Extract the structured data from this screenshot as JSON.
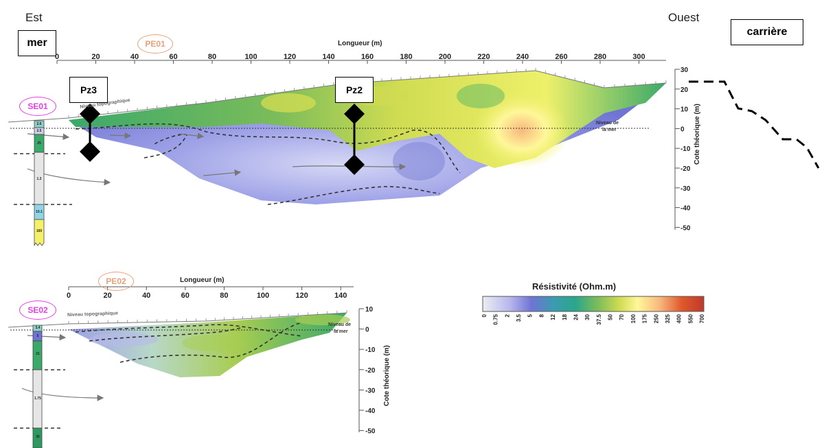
{
  "header": {
    "east": "Est",
    "west": "Ouest",
    "sea": "mer",
    "quarry": "carrière"
  },
  "section1": {
    "profile": "PE01",
    "sounding": "SE01",
    "xlabel": "Longueur (m)",
    "ylabel": "Cote théorique (m)",
    "x_ticks": [
      "0",
      "20",
      "40",
      "60",
      "80",
      "100",
      "120",
      "140",
      "160",
      "180",
      "200",
      "220",
      "240",
      "260",
      "280",
      "300"
    ],
    "y_ticks": [
      "30",
      "20",
      "10",
      "0",
      "-10",
      "-20",
      "-30",
      "-40",
      "-50"
    ],
    "topo_label": "Niveau topographique",
    "sea_label_1": "Niveau de",
    "sea_label_2": "la mer",
    "wells": [
      {
        "name": "Pz3"
      },
      {
        "name": "Pz2"
      }
    ],
    "column": [
      "2.6",
      "2.5",
      "25",
      "1.3",
      "10.1",
      "160"
    ]
  },
  "section2": {
    "profile": "PE02",
    "sounding": "SE02",
    "xlabel": "Longueur (m)",
    "ylabel": "Cote théorique (m)",
    "x_ticks": [
      "0",
      "20",
      "40",
      "60",
      "80",
      "100",
      "120",
      "140"
    ],
    "y_ticks": [
      "10",
      "0",
      "-10",
      "-20",
      "-30",
      "-40",
      "-50"
    ],
    "topo_label": "Niveau topographique",
    "sea_label_1": "Niveau de",
    "sea_label_2": "la mer",
    "column": [
      "3.4",
      "5",
      "21",
      "1.75",
      "30"
    ]
  },
  "legend": {
    "title": "Résistivité (Ohm.m)",
    "ticks": [
      "0",
      "0.75",
      "2",
      "3.5",
      "5",
      "8",
      "12",
      "18",
      "24",
      "30",
      "37.5",
      "50",
      "70",
      "100",
      "175",
      "250",
      "325",
      "400",
      "550",
      "700"
    ],
    "colors": [
      "#ececf3",
      "#d9daf0",
      "#b8b9ec",
      "#8f93e0",
      "#6f74d4",
      "#4e7fc4",
      "#3b9bb0",
      "#2aa78a",
      "#3aa96a",
      "#58b064",
      "#7cbc5a",
      "#a8cd52",
      "#d0dc52",
      "#eef06a",
      "#fff79a",
      "#fbe2a0",
      "#f7b87e",
      "#ef8d56",
      "#e0582c",
      "#c0392b"
    ]
  }
}
